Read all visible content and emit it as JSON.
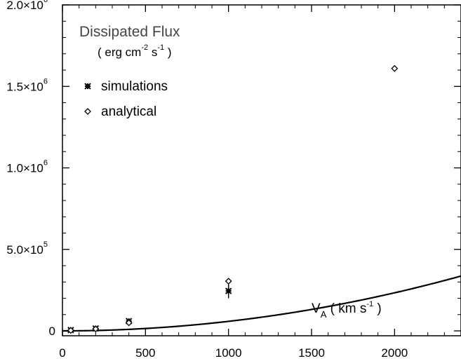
{
  "chart_data": {
    "type": "scatter",
    "title": "Dissipated Flux",
    "subtitle_parts": {
      "open": "( erg cm",
      "cm_exp": "-2",
      "s": " s",
      "s_exp": "-1",
      "close": " )"
    },
    "xlabel_parts": {
      "v": "V",
      "sub": "A",
      "units_open": "  ( km s",
      "exp": "-1",
      "close": " )"
    },
    "xlim": [
      0,
      2400
    ],
    "ylim": [
      -30000,
      2000000
    ],
    "x_ticks": [
      {
        "value": 0,
        "label": "0"
      },
      {
        "value": 500,
        "label": "500"
      },
      {
        "value": 1000,
        "label": "1000"
      },
      {
        "value": 1500,
        "label": "1500"
      },
      {
        "value": 2000,
        "label": "2000"
      }
    ],
    "y_ticks": [
      {
        "value": 0,
        "mant": "0",
        "exp": ""
      },
      {
        "value": 500000,
        "mant": "5.0×10",
        "exp": "5"
      },
      {
        "value": 1000000,
        "mant": "1.0×10",
        "exp": "6"
      },
      {
        "value": 1500000,
        "mant": "1.5×10",
        "exp": "6"
      },
      {
        "value": 2000000,
        "mant": "2.0×10",
        "exp": "6"
      }
    ],
    "legend": {
      "placement": "top-left",
      "entries": [
        {
          "name": "simulations",
          "marker": "asterisk"
        },
        {
          "name": "analytical",
          "marker": "diamond"
        }
      ]
    },
    "series": [
      {
        "name": "simulations",
        "marker": "asterisk",
        "points": [
          {
            "x": 50,
            "y": 5000,
            "err": 0
          },
          {
            "x": 200,
            "y": 15000,
            "err": 0
          },
          {
            "x": 400,
            "y": 60000,
            "err": 0
          },
          {
            "x": 1000,
            "y": 245000,
            "err": 45000
          }
        ]
      },
      {
        "name": "analytical",
        "marker": "diamond",
        "points": [
          {
            "x": 50,
            "y": 3000
          },
          {
            "x": 200,
            "y": 12000
          },
          {
            "x": 400,
            "y": 50000
          },
          {
            "x": 1000,
            "y": 305000
          },
          {
            "x": 2000,
            "y": 1610000
          }
        ]
      },
      {
        "name": "",
        "style": "solid-curve",
        "function": "y = a * x^2",
        "coefficient_a": 0.0584
      }
    ]
  }
}
